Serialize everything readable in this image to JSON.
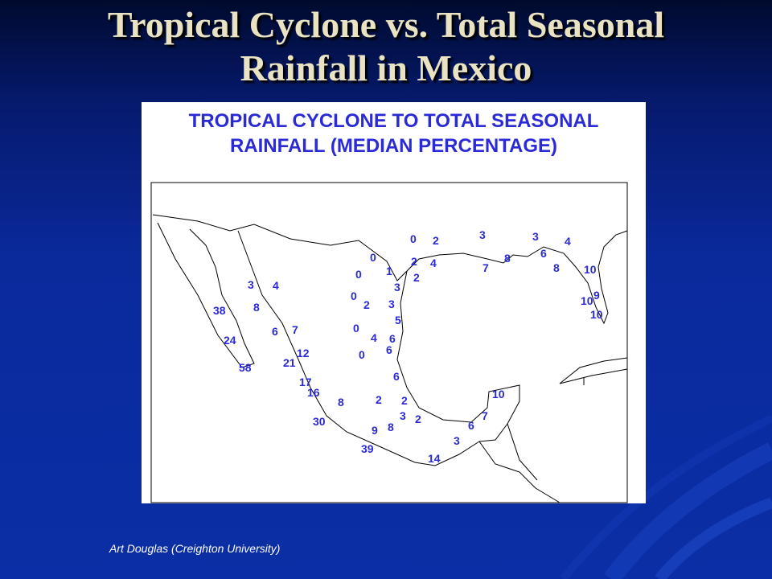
{
  "slide": {
    "title_line1": "Tropical Cyclone vs. Total Seasonal",
    "title_line2": "Rainfall in Mexico",
    "credit": "Art Douglas (Creighton University)"
  },
  "map": {
    "heading_line1": "TROPICAL CYCLONE TO TOTAL SEASONAL",
    "heading_line2": "RAINFALL (MEDIAN PERCENTAGE)",
    "text_color": "#2a2ad6",
    "values": [
      "0",
      "2",
      "3",
      "3",
      "4",
      "0",
      "2",
      "4",
      "1",
      "0",
      "2",
      "8",
      "6",
      "7",
      "8",
      "10",
      "3",
      "3",
      "4",
      "38",
      "8",
      "0",
      "2",
      "3",
      "10",
      "9",
      "10",
      "5",
      "0",
      "7",
      "6",
      "24",
      "4",
      "6",
      "6",
      "12",
      "0",
      "21",
      "58",
      "6",
      "17",
      "16",
      "8",
      "2",
      "2",
      "10",
      "3",
      "2",
      "7",
      "6",
      "30",
      "9",
      "8",
      "3",
      "39",
      "14"
    ]
  },
  "colors": {
    "background": "#0b2ea6",
    "title": "#e9e3c4",
    "panel": "#ffffff"
  }
}
